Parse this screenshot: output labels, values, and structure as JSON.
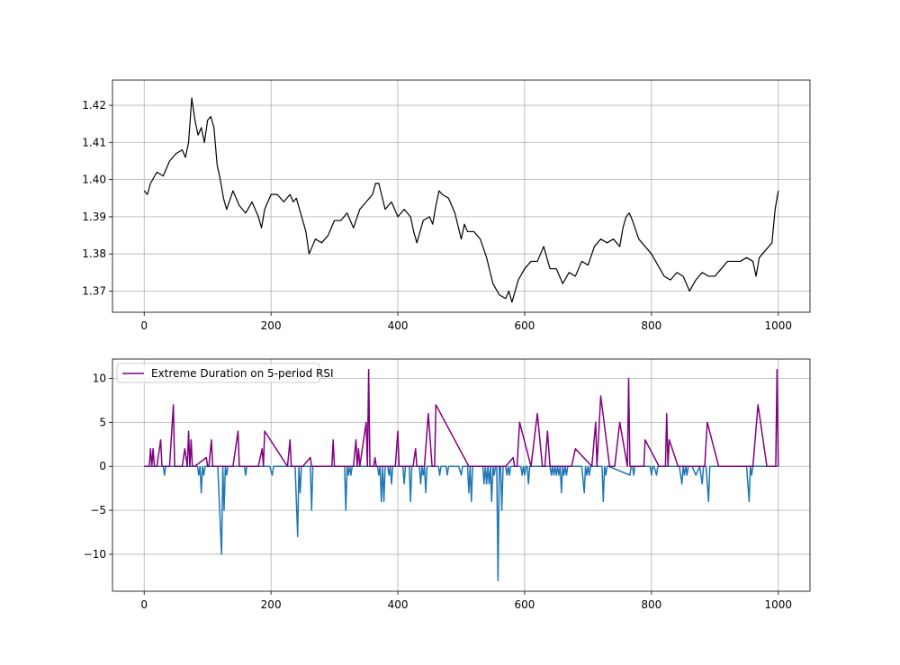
{
  "colors": {
    "price": "#000000",
    "positive": "#800080",
    "negative": "#1f77b4",
    "grid": "#b0b0b0"
  },
  "chart_data": [
    {
      "type": "line",
      "title": "",
      "xlabel": "",
      "ylabel": "",
      "xlim": [
        -50,
        1050
      ],
      "ylim": [
        1.3643,
        1.4268
      ],
      "xticks": [
        0,
        200,
        400,
        600,
        800,
        1000
      ],
      "xtick_labels": [
        "0",
        "200",
        "400",
        "600",
        "800",
        "1000"
      ],
      "yticks": [
        1.37,
        1.38,
        1.39,
        1.4,
        1.41,
        1.42
      ],
      "ytick_labels": [
        "1.37",
        "1.38",
        "1.39",
        "1.40",
        "1.41",
        "1.42"
      ],
      "grid": true,
      "series": [
        {
          "color": "#000000",
          "x": [
            0,
            5,
            10,
            20,
            30,
            40,
            50,
            60,
            65,
            70,
            75,
            80,
            85,
            90,
            95,
            100,
            105,
            110,
            115,
            120,
            125,
            130,
            140,
            150,
            160,
            170,
            180,
            185,
            190,
            200,
            210,
            220,
            230,
            235,
            240,
            250,
            255,
            260,
            270,
            280,
            290,
            300,
            310,
            320,
            330,
            340,
            350,
            360,
            365,
            370,
            380,
            390,
            400,
            410,
            420,
            425,
            430,
            440,
            450,
            455,
            460,
            465,
            470,
            480,
            490,
            500,
            505,
            510,
            520,
            530,
            540,
            550,
            560,
            570,
            575,
            580,
            590,
            600,
            610,
            620,
            630,
            640,
            650,
            660,
            670,
            680,
            690,
            700,
            710,
            720,
            730,
            740,
            750,
            755,
            760,
            765,
            770,
            780,
            790,
            800,
            810,
            820,
            830,
            840,
            850,
            860,
            870,
            880,
            890,
            900,
            910,
            920,
            930,
            940,
            950,
            960,
            965,
            970,
            980,
            990,
            995,
            1000
          ],
          "y": [
            1.397,
            1.396,
            1.399,
            1.402,
            1.401,
            1.405,
            1.407,
            1.408,
            1.406,
            1.41,
            1.422,
            1.416,
            1.412,
            1.414,
            1.41,
            1.416,
            1.417,
            1.414,
            1.404,
            1.4,
            1.395,
            1.392,
            1.397,
            1.393,
            1.391,
            1.394,
            1.39,
            1.387,
            1.392,
            1.396,
            1.396,
            1.394,
            1.396,
            1.394,
            1.395,
            1.389,
            1.386,
            1.38,
            1.384,
            1.383,
            1.385,
            1.389,
            1.389,
            1.391,
            1.387,
            1.392,
            1.394,
            1.396,
            1.399,
            1.399,
            1.392,
            1.394,
            1.39,
            1.392,
            1.39,
            1.386,
            1.383,
            1.389,
            1.39,
            1.388,
            1.393,
            1.397,
            1.396,
            1.395,
            1.391,
            1.384,
            1.388,
            1.386,
            1.386,
            1.384,
            1.379,
            1.372,
            1.369,
            1.368,
            1.37,
            1.367,
            1.373,
            1.376,
            1.378,
            1.378,
            1.382,
            1.376,
            1.376,
            1.372,
            1.375,
            1.374,
            1.378,
            1.377,
            1.382,
            1.384,
            1.383,
            1.384,
            1.382,
            1.387,
            1.39,
            1.391,
            1.389,
            1.384,
            1.382,
            1.38,
            1.377,
            1.374,
            1.373,
            1.375,
            1.374,
            1.37,
            1.373,
            1.375,
            1.374,
            1.374,
            1.376,
            1.378,
            1.378,
            1.378,
            1.379,
            1.378,
            1.374,
            1.379,
            1.381,
            1.383,
            1.392,
            1.397
          ]
        }
      ]
    },
    {
      "type": "line",
      "title": "",
      "xlabel": "",
      "ylabel": "",
      "xlim": [
        -50,
        1050
      ],
      "ylim": [
        -14.2,
        12.2
      ],
      "xticks": [
        0,
        200,
        400,
        600,
        800,
        1000
      ],
      "xtick_labels": [
        "0",
        "200",
        "400",
        "600",
        "800",
        "1000"
      ],
      "yticks": [
        -10,
        -5,
        0,
        5,
        10
      ],
      "ytick_labels": [
        "−10",
        "−5",
        "0",
        "5",
        "10"
      ],
      "grid": true,
      "legend": {
        "position": "top-left",
        "entries": [
          "Extreme Duration on 5-period RSI"
        ]
      },
      "series": [
        {
          "name": "Extreme Duration on 5-period RSI",
          "color": "#800080",
          "x": [
            0,
            8,
            10,
            12,
            14,
            16,
            20,
            26,
            28,
            30,
            40,
            46,
            48,
            60,
            64,
            68,
            70,
            72,
            74,
            76,
            78,
            80,
            98,
            100,
            102,
            106,
            108,
            140,
            148,
            150,
            180,
            186,
            188,
            190,
            226,
            230,
            232,
            250,
            262,
            264,
            296,
            298,
            300,
            330,
            334,
            336,
            338,
            340,
            350,
            352,
            354,
            356,
            362,
            364,
            366,
            396,
            400,
            402,
            424,
            428,
            430,
            442,
            448,
            454,
            458,
            460,
            512,
            570,
            582,
            584,
            588,
            592,
            610,
            620,
            628,
            632,
            636,
            640,
            660,
            674,
            680,
            706,
            712,
            714,
            720,
            734,
            742,
            750,
            762,
            764,
            766,
            780,
            788,
            790,
            812,
            822,
            824,
            826,
            828,
            842,
            882,
            884,
            888,
            906,
            918,
            920,
            960,
            968,
            982,
            984,
            990,
            996,
            998,
            1000
          ],
          "y": [
            0,
            0,
            2,
            0,
            2,
            0,
            0,
            3,
            0,
            0,
            0,
            7,
            0,
            0,
            2,
            0,
            4,
            0,
            3,
            0,
            0,
            0,
            1,
            0,
            0,
            3,
            0,
            0,
            4,
            0,
            0,
            2,
            0,
            4,
            0,
            3,
            0,
            0,
            1,
            0,
            0,
            3,
            0,
            0,
            3,
            0,
            2,
            0,
            5,
            0,
            11,
            0,
            0,
            1,
            0,
            0,
            4,
            0,
            0,
            2,
            0,
            0,
            6,
            0,
            0,
            7,
            0,
            0,
            1,
            0,
            0,
            5,
            0,
            6,
            0,
            0,
            4,
            0,
            0,
            0,
            2,
            0,
            5,
            0,
            8,
            0,
            0,
            5,
            0,
            10,
            0,
            0,
            0,
            3,
            0,
            0,
            6,
            0,
            3,
            0,
            0,
            0,
            5,
            0,
            0,
            0,
            0,
            7,
            0,
            0,
            0,
            0,
            11,
            0
          ]
        },
        {
          "name": "",
          "color": "#1f77b4",
          "x": [
            0,
            30,
            32,
            34,
            84,
            86,
            88,
            90,
            92,
            94,
            96,
            116,
            122,
            124,
            126,
            128,
            130,
            132,
            134,
            158,
            160,
            162,
            198,
            202,
            204,
            206,
            238,
            242,
            244,
            246,
            248,
            250,
            262,
            264,
            266,
            310,
            316,
            318,
            320,
            322,
            324,
            326,
            328,
            330,
            368,
            370,
            372,
            374,
            376,
            378,
            380,
            384,
            386,
            388,
            390,
            392,
            400,
            408,
            410,
            412,
            418,
            420,
            422,
            434,
            436,
            438,
            440,
            442,
            444,
            446,
            464,
            466,
            468,
            476,
            478,
            480,
            496,
            500,
            502,
            504,
            510,
            512,
            514,
            516,
            518,
            520,
            534,
            536,
            538,
            540,
            542,
            544,
            546,
            548,
            550,
            552,
            554,
            556,
            558,
            560,
            562,
            564,
            566,
            568,
            570,
            572,
            574,
            576,
            578,
            580,
            594,
            596,
            598,
            600,
            602,
            604,
            606,
            608,
            640,
            642,
            644,
            646,
            648,
            650,
            652,
            654,
            656,
            658,
            660,
            662,
            664,
            666,
            668,
            670,
            672,
            690,
            694,
            696,
            698,
            700,
            702,
            704,
            712,
            722,
            724,
            726,
            728,
            730,
            732,
            766,
            768,
            770,
            772,
            774,
            794,
            798,
            800,
            802,
            804,
            808,
            810,
            812,
            820,
            844,
            848,
            850,
            852,
            854,
            856,
            858,
            860,
            862,
            864,
            870,
            876,
            880,
            882,
            884,
            886,
            890,
            892,
            894,
            950,
            954,
            956,
            958,
            960,
            962,
            964,
            966,
            1000
          ],
          "y": [
            0,
            0,
            -1,
            0,
            0,
            -1,
            0,
            -3,
            0,
            -1,
            0,
            0,
            -10,
            0,
            -5,
            0,
            -1,
            0,
            0,
            0,
            -1,
            0,
            0,
            -1,
            0,
            0,
            0,
            -8,
            0,
            -3,
            0,
            0,
            0,
            -5,
            0,
            0,
            0,
            -5,
            0,
            -1,
            0,
            -1,
            0,
            0,
            0,
            -1,
            0,
            -4,
            0,
            -4,
            0,
            0,
            -1,
            0,
            -2,
            0,
            0,
            0,
            -2,
            0,
            0,
            -4,
            0,
            0,
            -2,
            0,
            -1,
            0,
            -3,
            0,
            0,
            -1,
            0,
            0,
            -1,
            0,
            0,
            -1,
            0,
            0,
            0,
            -3,
            0,
            -4,
            0,
            0,
            0,
            -2,
            0,
            -2,
            0,
            -2,
            0,
            -4,
            0,
            -1,
            0,
            0,
            -13,
            0,
            0,
            -5,
            0,
            0,
            0,
            -1,
            0,
            -1,
            0,
            0,
            0,
            -1,
            0,
            -1,
            0,
            0,
            -2,
            0,
            0,
            -1,
            0,
            -1,
            0,
            -1,
            0,
            -1,
            0,
            -3,
            0,
            -1,
            0,
            -1,
            0,
            0,
            0,
            0,
            -3,
            0,
            -1,
            0,
            -1,
            0,
            0,
            0,
            -4,
            0,
            -1,
            0,
            0,
            -1,
            0,
            0,
            -1,
            0,
            0,
            0,
            -1,
            0,
            0,
            -1,
            0,
            0,
            0,
            0,
            -2,
            0,
            -1,
            0,
            -1,
            0,
            0,
            0,
            0,
            -1,
            0,
            -2,
            0,
            0,
            0,
            -4,
            0,
            0,
            0,
            -4,
            0,
            -1,
            0,
            0,
            0,
            0,
            0
          ]
        }
      ]
    }
  ]
}
